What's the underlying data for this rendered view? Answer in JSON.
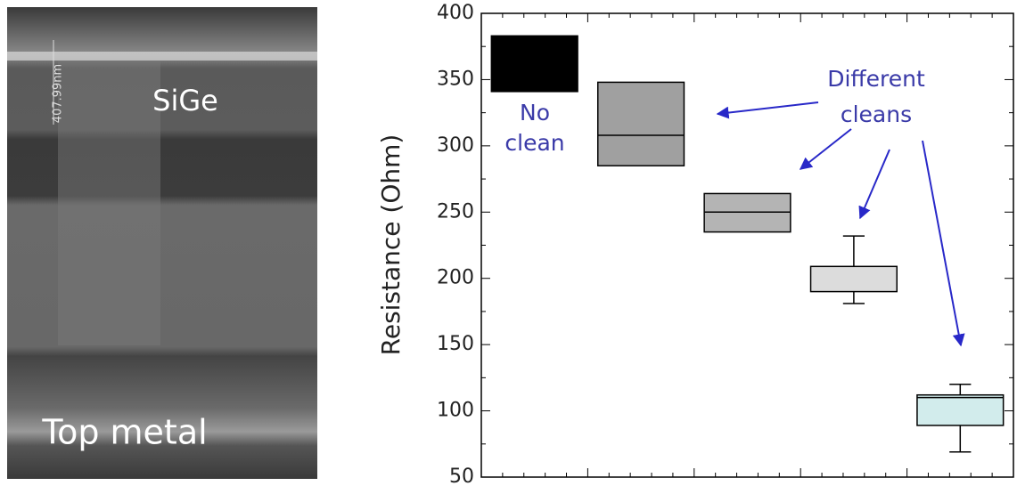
{
  "image": {
    "labels": [
      "SiGe",
      "Top metal"
    ],
    "scale_label": "407.99nm"
  },
  "chart_data": {
    "type": "box",
    "ylabel": "Resistance (Ohm)",
    "categories": [
      null,
      null,
      null,
      null,
      null
    ],
    "boxes": [
      {
        "q1": 341,
        "median": null,
        "q3": 383,
        "low": null,
        "high": null,
        "color": "#000000"
      },
      {
        "q1": 285,
        "median": 308,
        "q3": 348,
        "low": null,
        "high": null,
        "color": "#a0a0a0"
      },
      {
        "q1": 235,
        "median": 250,
        "q3": 264,
        "low": null,
        "high": null,
        "color": "#b4b4b4"
      },
      {
        "q1": 190,
        "median": null,
        "q3": 209,
        "low": 181,
        "high": 232,
        "color": "#dcdcdc"
      },
      {
        "q1": 89,
        "median": 110,
        "q3": 112,
        "low": 69,
        "high": 120,
        "color": "#d2ecec"
      }
    ],
    "ylim": [
      50,
      400
    ],
    "yticks": [
      50,
      100,
      150,
      200,
      250,
      300,
      350,
      400
    ],
    "annotations": [
      "No",
      "clean",
      "Different",
      "cleans"
    ]
  }
}
